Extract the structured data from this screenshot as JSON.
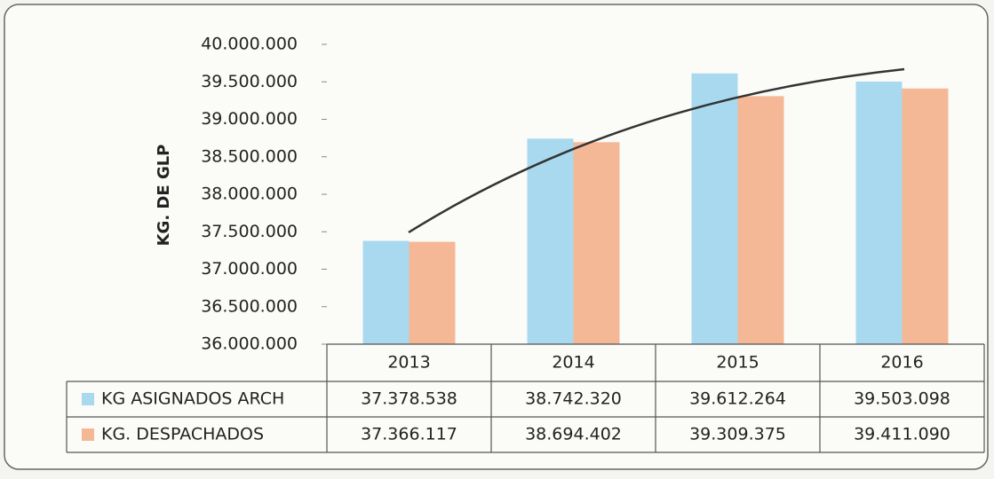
{
  "chart_data": {
    "type": "bar",
    "y_label": "KG. DE GLP",
    "categories": [
      "2013",
      "2014",
      "2015",
      "2016"
    ],
    "series": [
      {
        "name": "KG ASIGNADOS ARCH",
        "color": "#a9d9ef",
        "values": [
          37378538,
          38742320,
          39612264,
          39503098
        ],
        "value_labels": [
          "37.378.538",
          "38.742.320",
          "39.612.264",
          "39.503.098"
        ]
      },
      {
        "name": "KG. DESPACHADOS",
        "color": "#f5b896",
        "values": [
          37366117,
          38694402,
          39309375,
          39411090
        ],
        "value_labels": [
          "37.366.117",
          "38.694.402",
          "39.309.375",
          "39.411.090"
        ]
      }
    ],
    "ylim": [
      36000000,
      40000000
    ],
    "yticks": [
      {
        "value": 36000000,
        "label": "36.000.000"
      },
      {
        "value": 36500000,
        "label": "36.500.000"
      },
      {
        "value": 37000000,
        "label": "37.000.000"
      },
      {
        "value": 37500000,
        "label": "37.500.000"
      },
      {
        "value": 38000000,
        "label": "38.000.000"
      },
      {
        "value": 38500000,
        "label": "38.500.000"
      },
      {
        "value": 39000000,
        "label": "39.000.000"
      },
      {
        "value": 39500000,
        "label": "39.500.000"
      },
      {
        "value": 40000000,
        "label": "40.000.000"
      }
    ]
  }
}
